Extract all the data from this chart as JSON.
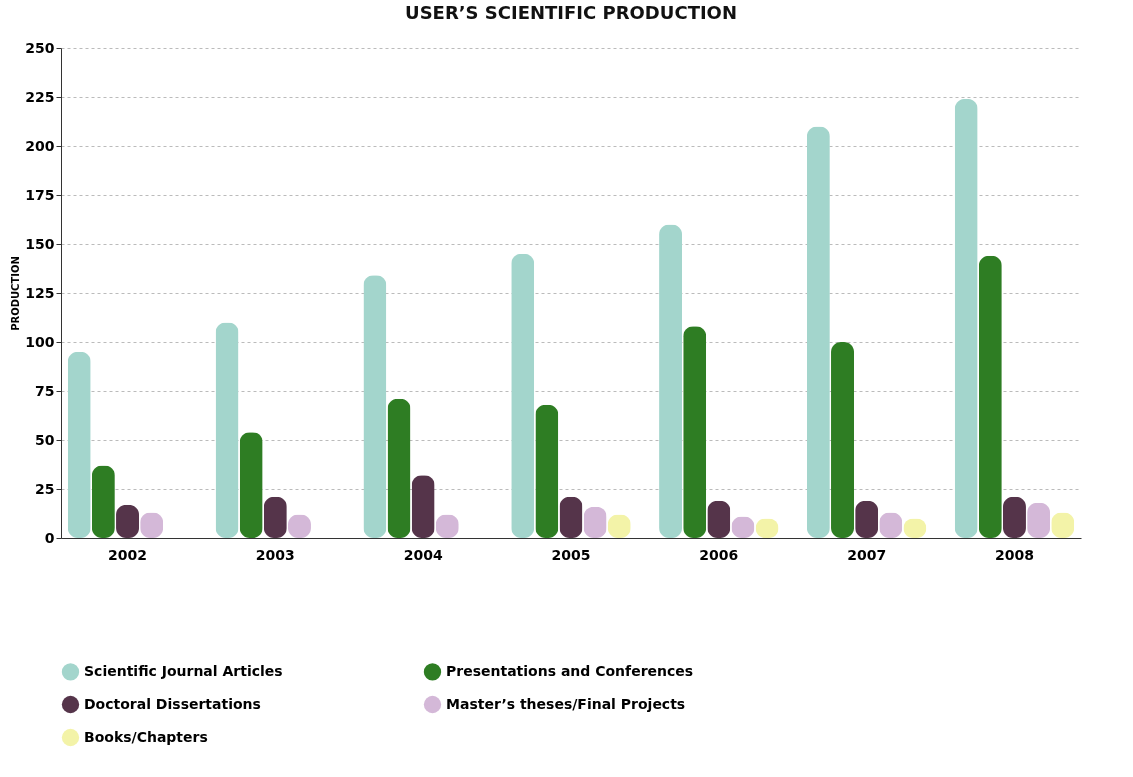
{
  "chart_data": {
    "type": "bar",
    "title": "USER’S SCIENTIFIC PRODUCTION",
    "ylabel": "PRODUCTION",
    "categories": [
      "2002",
      "2003",
      "2004",
      "2005",
      "2006",
      "2007",
      "2008"
    ],
    "series": [
      {
        "name": "Scientific Journal Articles",
        "color": "#a3d5cc",
        "values": [
          95,
          110,
          134,
          145,
          160,
          210,
          224
        ]
      },
      {
        "name": "Presentations and Conferences",
        "color": "#2e7d23",
        "values": [
          37,
          54,
          71,
          68,
          108,
          100,
          144
        ]
      },
      {
        "name": "Doctoral Dissertations",
        "color": "#55344a",
        "values": [
          17,
          21,
          32,
          21,
          19,
          19,
          21
        ]
      },
      {
        "name": "Master’s theses/Final Projects",
        "color": "#d4b8d8",
        "values": [
          13,
          12,
          12,
          16,
          11,
          13,
          18
        ]
      },
      {
        "name": "Books/Chapters",
        "color": "#f3f3a8",
        "values": [
          null,
          null,
          null,
          12,
          10,
          10,
          13
        ]
      }
    ],
    "ylim": [
      0,
      250
    ],
    "yticks": [
      0,
      25,
      50,
      75,
      100,
      125,
      150,
      175,
      200,
      225,
      250
    ],
    "grid": "y",
    "legend": "bottom"
  }
}
